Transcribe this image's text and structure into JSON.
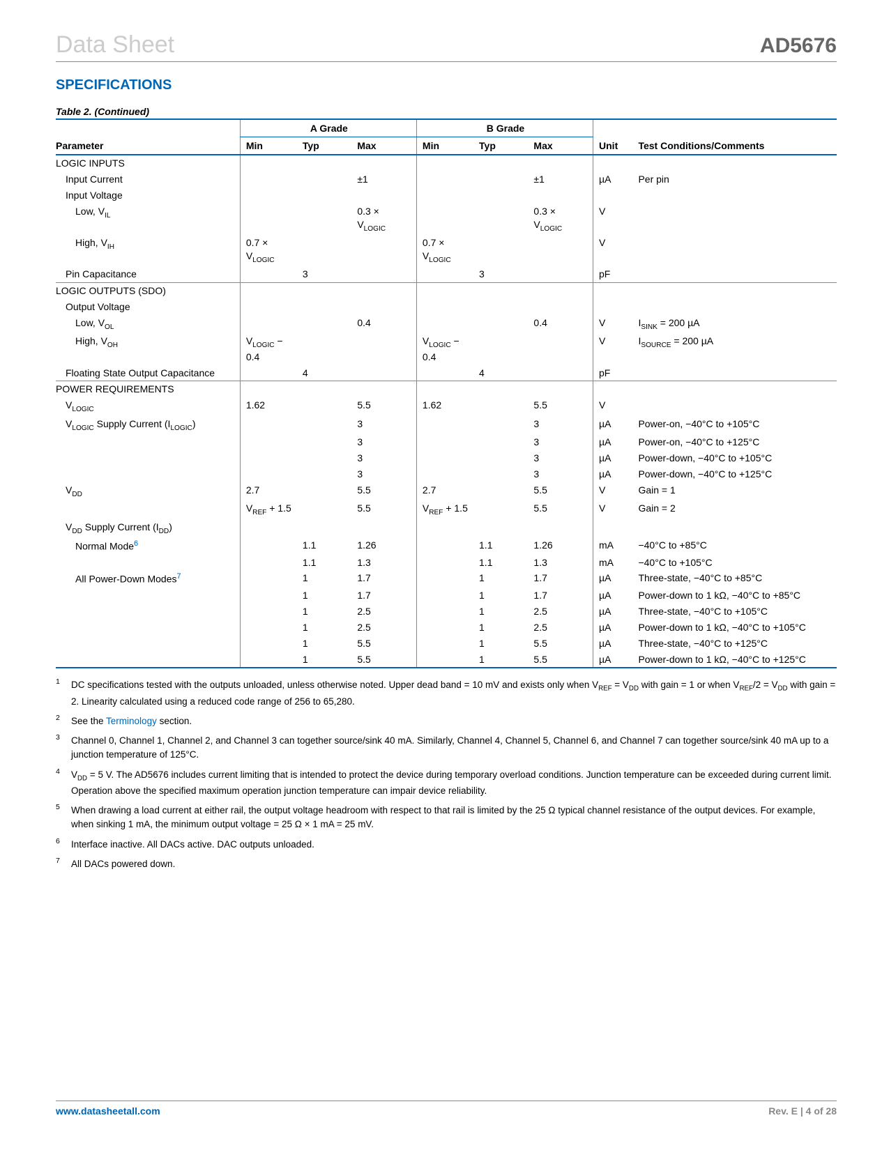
{
  "header": {
    "left": "Data Sheet",
    "right": "AD5676"
  },
  "section_title": "SPECIFICATIONS",
  "table_caption": "Table 2. (Continued)",
  "col_headers": {
    "param": "Parameter",
    "grade_a": "A Grade",
    "grade_b": "B Grade",
    "min": "Min",
    "typ": "Typ",
    "max": "Max",
    "unit": "Unit",
    "cond": "Test Conditions/Comments"
  },
  "rows": [
    {
      "p": "LOGIC INPUTS",
      "sec": 1
    },
    {
      "p": "Input Current",
      "ind": 1,
      "amax": "±1",
      "bmax": "±1",
      "u": "µA",
      "c": "Per pin"
    },
    {
      "p": "Input Voltage",
      "ind": 1
    },
    {
      "p": "Low, V<sub>IL</sub>",
      "ind": 2,
      "amax": "0.3 ×<br>V<sub>LOGIC</sub>",
      "bmax": "0.3 ×<br>V<sub>LOGIC</sub>",
      "u": "V"
    },
    {
      "p": "High, V<sub>IH</sub>",
      "ind": 2,
      "amin": "0.7 ×<br>V<sub>LOGIC</sub>",
      "bmin": "0.7 ×<br>V<sub>LOGIC</sub>",
      "u": "V"
    },
    {
      "p": "Pin Capacitance",
      "ind": 1,
      "atyp": "3",
      "btyp": "3",
      "u": "pF"
    },
    {
      "p": "LOGIC OUTPUTS (SDO)",
      "sec": 1,
      "rule": 1
    },
    {
      "p": "Output Voltage",
      "ind": 1
    },
    {
      "p": "Low, V<sub>OL</sub>",
      "ind": 2,
      "amax": "0.4",
      "bmax": "0.4",
      "u": "V",
      "c": "I<sub>SINK</sub> = 200 µA"
    },
    {
      "p": "High, V<sub>OH</sub>",
      "ind": 2,
      "amin": "V<sub>LOGIC</sub> −<br>0.4",
      "bmin": "V<sub>LOGIC</sub> −<br>0.4",
      "u": "V",
      "c": "I<sub>SOURCE</sub> = 200 µA"
    },
    {
      "p": "Floating State Output Capacitance",
      "ind": 1,
      "atyp": "4",
      "btyp": "4",
      "u": "pF"
    },
    {
      "p": "POWER REQUIREMENTS",
      "sec": 1,
      "rule": 1
    },
    {
      "p": "V<sub>LOGIC</sub>",
      "ind": 1,
      "amin": "1.62",
      "amax": "5.5",
      "bmin": "1.62",
      "bmax": "5.5",
      "u": "V"
    },
    {
      "p": "V<sub>LOGIC</sub> Supply Current (I<sub>LOGIC</sub>)",
      "ind": 1,
      "amax": "3",
      "bmax": "3",
      "u": "µA",
      "c": "Power-on, −40°C to +105°C"
    },
    {
      "p": "",
      "amax": "3",
      "bmax": "3",
      "u": "µA",
      "c": "Power-on, −40°C to +125°C"
    },
    {
      "p": "",
      "amax": "3",
      "bmax": "3",
      "u": "µA",
      "c": "Power-down, −40°C to +105°C"
    },
    {
      "p": "",
      "amax": "3",
      "bmax": "3",
      "u": "µA",
      "c": "Power-down, −40°C to +125°C"
    },
    {
      "p": "V<sub>DD</sub>",
      "ind": 1,
      "amin": "2.7",
      "amax": "5.5",
      "bmin": "2.7",
      "bmax": "5.5",
      "u": "V",
      "c": "Gain = 1"
    },
    {
      "p": "",
      "amin": "V<sub>REF</sub> + 1.5",
      "amax": "5.5",
      "bmin": "V<sub>REF</sub> + 1.5",
      "bmax": "5.5",
      "u": "V",
      "c": "Gain = 2"
    },
    {
      "p": "V<sub>DD</sub> Supply Current (I<sub>DD</sub>)",
      "ind": 1
    },
    {
      "p": "Normal Mode<span class='supref'>6</span>",
      "ind": 2,
      "atyp": "1.1",
      "amax": "1.26",
      "btyp": "1.1",
      "bmax": "1.26",
      "u": "mA",
      "c": "−40°C to +85°C"
    },
    {
      "p": "",
      "atyp": "1.1",
      "amax": "1.3",
      "btyp": "1.1",
      "bmax": "1.3",
      "u": "mA",
      "c": "−40°C to +105°C"
    },
    {
      "p": "All Power-Down Modes<span class='supref'>7</span>",
      "ind": 2,
      "atyp": "1",
      "amax": "1.7",
      "btyp": "1",
      "bmax": "1.7",
      "u": "µA",
      "c": "Three-state, −40°C to +85°C"
    },
    {
      "p": "",
      "atyp": "1",
      "amax": "1.7",
      "btyp": "1",
      "bmax": "1.7",
      "u": "µA",
      "c": "Power-down to 1 kΩ, −40°C to +85°C"
    },
    {
      "p": "",
      "atyp": "1",
      "amax": "2.5",
      "btyp": "1",
      "bmax": "2.5",
      "u": "µA",
      "c": "Three-state, −40°C to +105°C"
    },
    {
      "p": "",
      "atyp": "1",
      "amax": "2.5",
      "btyp": "1",
      "bmax": "2.5",
      "u": "µA",
      "c": "Power-down to 1 kΩ, −40°C to +105°C"
    },
    {
      "p": "",
      "atyp": "1",
      "amax": "5.5",
      "btyp": "1",
      "bmax": "5.5",
      "u": "µA",
      "c": "Three-state, −40°C to +125°C"
    },
    {
      "p": "",
      "atyp": "1",
      "amax": "5.5",
      "btyp": "1",
      "bmax": "5.5",
      "u": "µA",
      "c": "Power-down to 1 kΩ, −40°C to +125°C",
      "last": 1
    }
  ],
  "footnotes": [
    {
      "n": "1",
      "t": "DC specifications tested with the outputs unloaded, unless otherwise noted. Upper dead band = 10 mV and exists only when V<sub>REF</sub> = V<sub>DD</sub> with gain = 1 or when V<sub>REF</sub>/2 = V<sub>DD</sub> with gain = 2. Linearity calculated using a reduced code range of 256 to 65,280."
    },
    {
      "n": "2",
      "t": "See the <span class='link'>Terminology</span> section."
    },
    {
      "n": "3",
      "t": "Channel 0, Channel 1, Channel 2, and Channel 3 can together source/sink 40 mA. Similarly, Channel 4, Channel 5, Channel 6, and Channel 7 can together source/sink 40 mA up to a junction temperature of 125°C."
    },
    {
      "n": "4",
      "t": "V<sub>DD</sub> = 5 V. The AD5676 includes current limiting that is intended to protect the device during temporary overload conditions. Junction temperature can be exceeded during current limit. Operation above the specified maximum operation junction temperature can impair device reliability."
    },
    {
      "n": "5",
      "t": "When drawing a load current at either rail, the output voltage headroom with respect to that rail is limited by the 25 Ω typical channel resistance of the output devices. For example, when sinking 1 mA, the minimum output voltage = 25 Ω × 1 mA = 25 mV."
    },
    {
      "n": "6",
      "t": "Interface inactive. All DACs active. DAC outputs unloaded."
    },
    {
      "n": "7",
      "t": "All DACs powered down."
    }
  ],
  "footer": {
    "left": "www.datasheetall.com",
    "right": "Rev. E | 4 of 28"
  },
  "colwidths_pct": [
    23.6,
    8,
    7,
    7.6,
    8,
    7,
    7.6,
    5.8,
    25.4
  ],
  "colors": {
    "blue": "#0066b3",
    "gray": "#888888",
    "lightgray": "#cccccc"
  }
}
